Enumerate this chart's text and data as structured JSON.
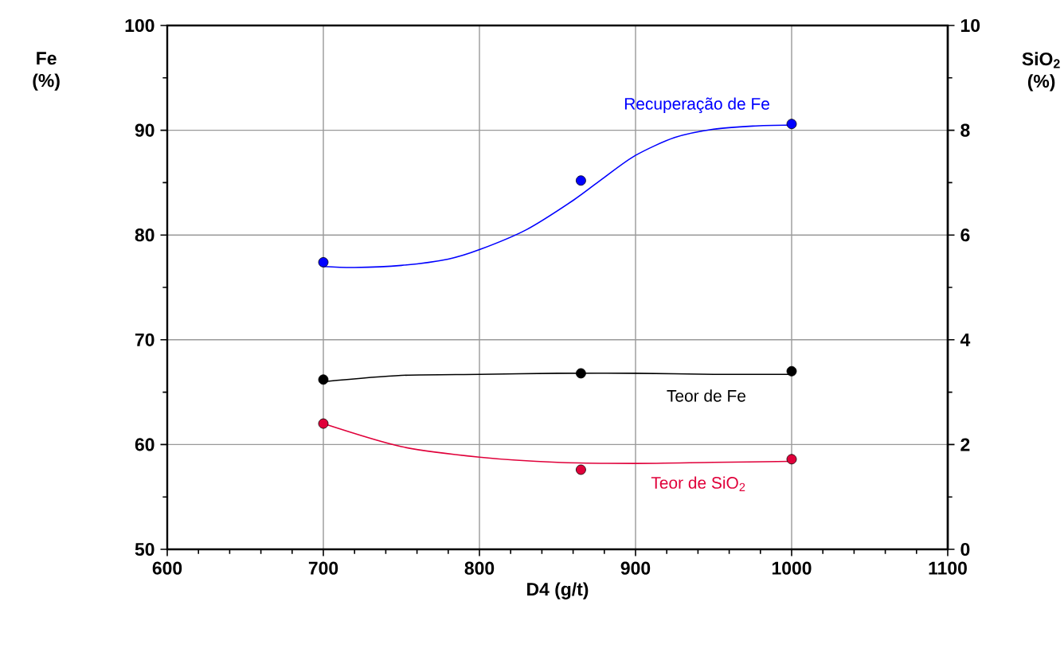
{
  "chart_data": {
    "type": "line",
    "xlabel": "D4 (g/t)",
    "ylabel": "Fe (%)",
    "y2label": "SiO$_{2}$ (%)",
    "xlim": [
      600,
      1100
    ],
    "xticks": [
      600,
      700,
      800,
      900,
      1000,
      1100
    ],
    "ylim": [
      50,
      100
    ],
    "yticks": [
      50,
      60,
      70,
      80,
      90,
      100
    ],
    "y2lim": [
      0,
      10
    ],
    "y2ticks": [
      0,
      2,
      4,
      6,
      8,
      10
    ],
    "grid": true,
    "marker": "circle",
    "series": [
      {
        "type": "scatter",
        "color": "#0000ff",
        "x": [
          700,
          865,
          1000
        ],
        "values": [
          77.4,
          85.2,
          90.6
        ]
      },
      {
        "type": "scatter",
        "color": "#000000",
        "x": [
          700,
          865,
          1000
        ],
        "values": [
          66.2,
          66.8,
          67.0
        ]
      },
      {
        "type": "scatter",
        "color": "#e0003a",
        "axis": "y2",
        "x": [
          700,
          865,
          1000
        ],
        "values": [
          2.4,
          1.52,
          1.72
        ]
      },
      {
        "name": "Recuperação de Fe",
        "color": "#0000ff",
        "marker": "none",
        "x": [
          700,
          720,
          750,
          780,
          800,
          830,
          860,
          880,
          900,
          925,
          950,
          975,
          1000
        ],
        "values": [
          77.0,
          76.9,
          77.1,
          77.7,
          78.6,
          80.5,
          83.3,
          85.5,
          87.6,
          89.3,
          90.1,
          90.4,
          90.5
        ]
      },
      {
        "name": "Teor de Fe",
        "color": "#000000",
        "marker": "none",
        "x": [
          700,
          750,
          800,
          850,
          900,
          950,
          1000
        ],
        "values": [
          66.0,
          66.6,
          66.7,
          66.8,
          66.8,
          66.7,
          66.7
        ]
      },
      {
        "name": "Teor de SiO$_{2}$",
        "color": "#e0003a",
        "marker": "none",
        "axis": "y2",
        "x": [
          700,
          750,
          800,
          850,
          900,
          950,
          1000
        ],
        "values": [
          2.4,
          1.96,
          1.76,
          1.66,
          1.64,
          1.66,
          1.68
        ]
      }
    ]
  }
}
